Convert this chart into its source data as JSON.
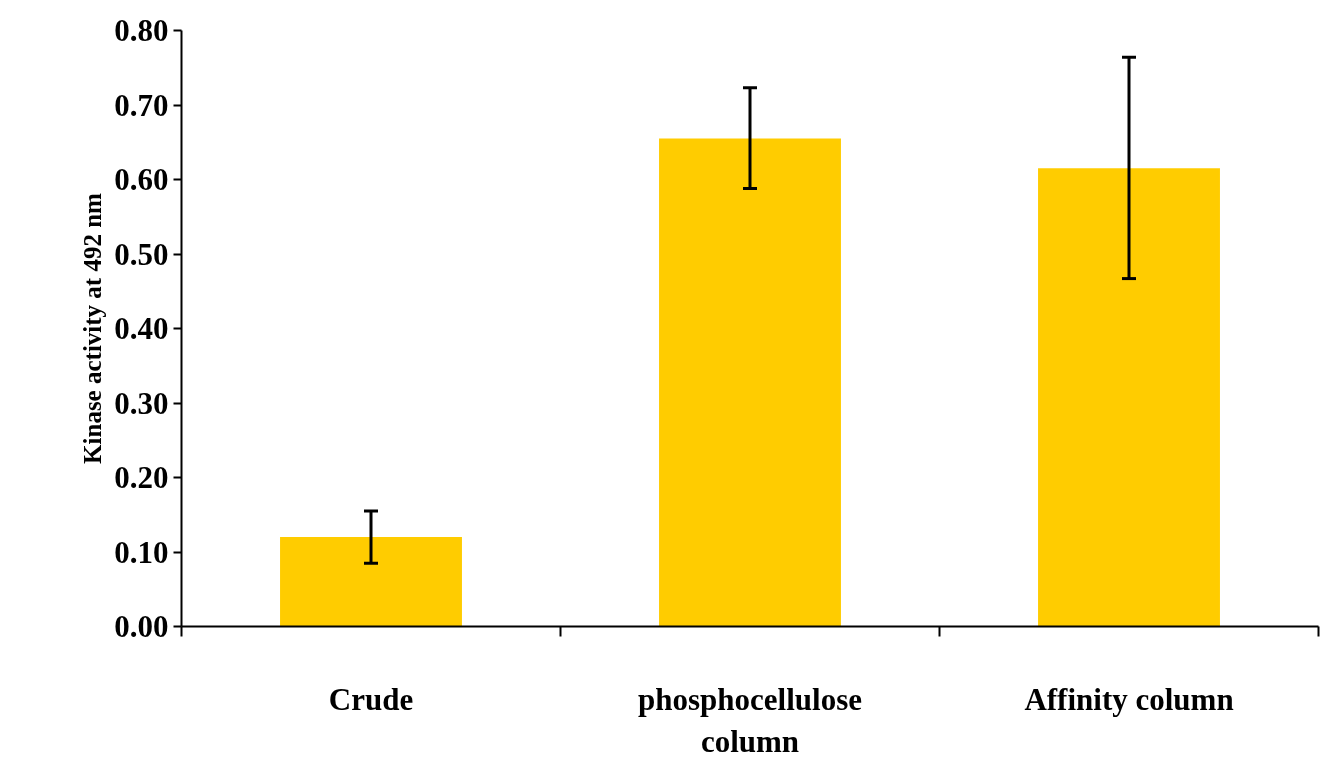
{
  "chart_data": {
    "type": "bar",
    "ylabel": "Kinase activity at 492 nm",
    "categories": [
      "Crude",
      "phosphocellulose column",
      "Affinity column"
    ],
    "values": [
      0.12,
      0.655,
      0.615
    ],
    "color": "#ffcc00",
    "errors": [
      [
        0.085,
        0.155
      ],
      [
        0.588,
        0.723
      ],
      [
        0.467,
        0.764
      ]
    ],
    "ylim": [
      0,
      0.8
    ],
    "yticks": [
      {
        "value": 0,
        "label": "0.00"
      },
      {
        "value": 0.1,
        "label": "0.10"
      },
      {
        "value": 0.2,
        "label": "0.20"
      },
      {
        "value": 0.3,
        "label": "0.30"
      },
      {
        "value": 0.4,
        "label": "0.40"
      },
      {
        "value": 0.5,
        "label": "0.50"
      },
      {
        "value": 0.6,
        "label": "0.60"
      },
      {
        "value": 0.7,
        "label": "0.70"
      },
      {
        "value": 0.8,
        "label": "0.80"
      }
    ],
    "grid": false
  }
}
